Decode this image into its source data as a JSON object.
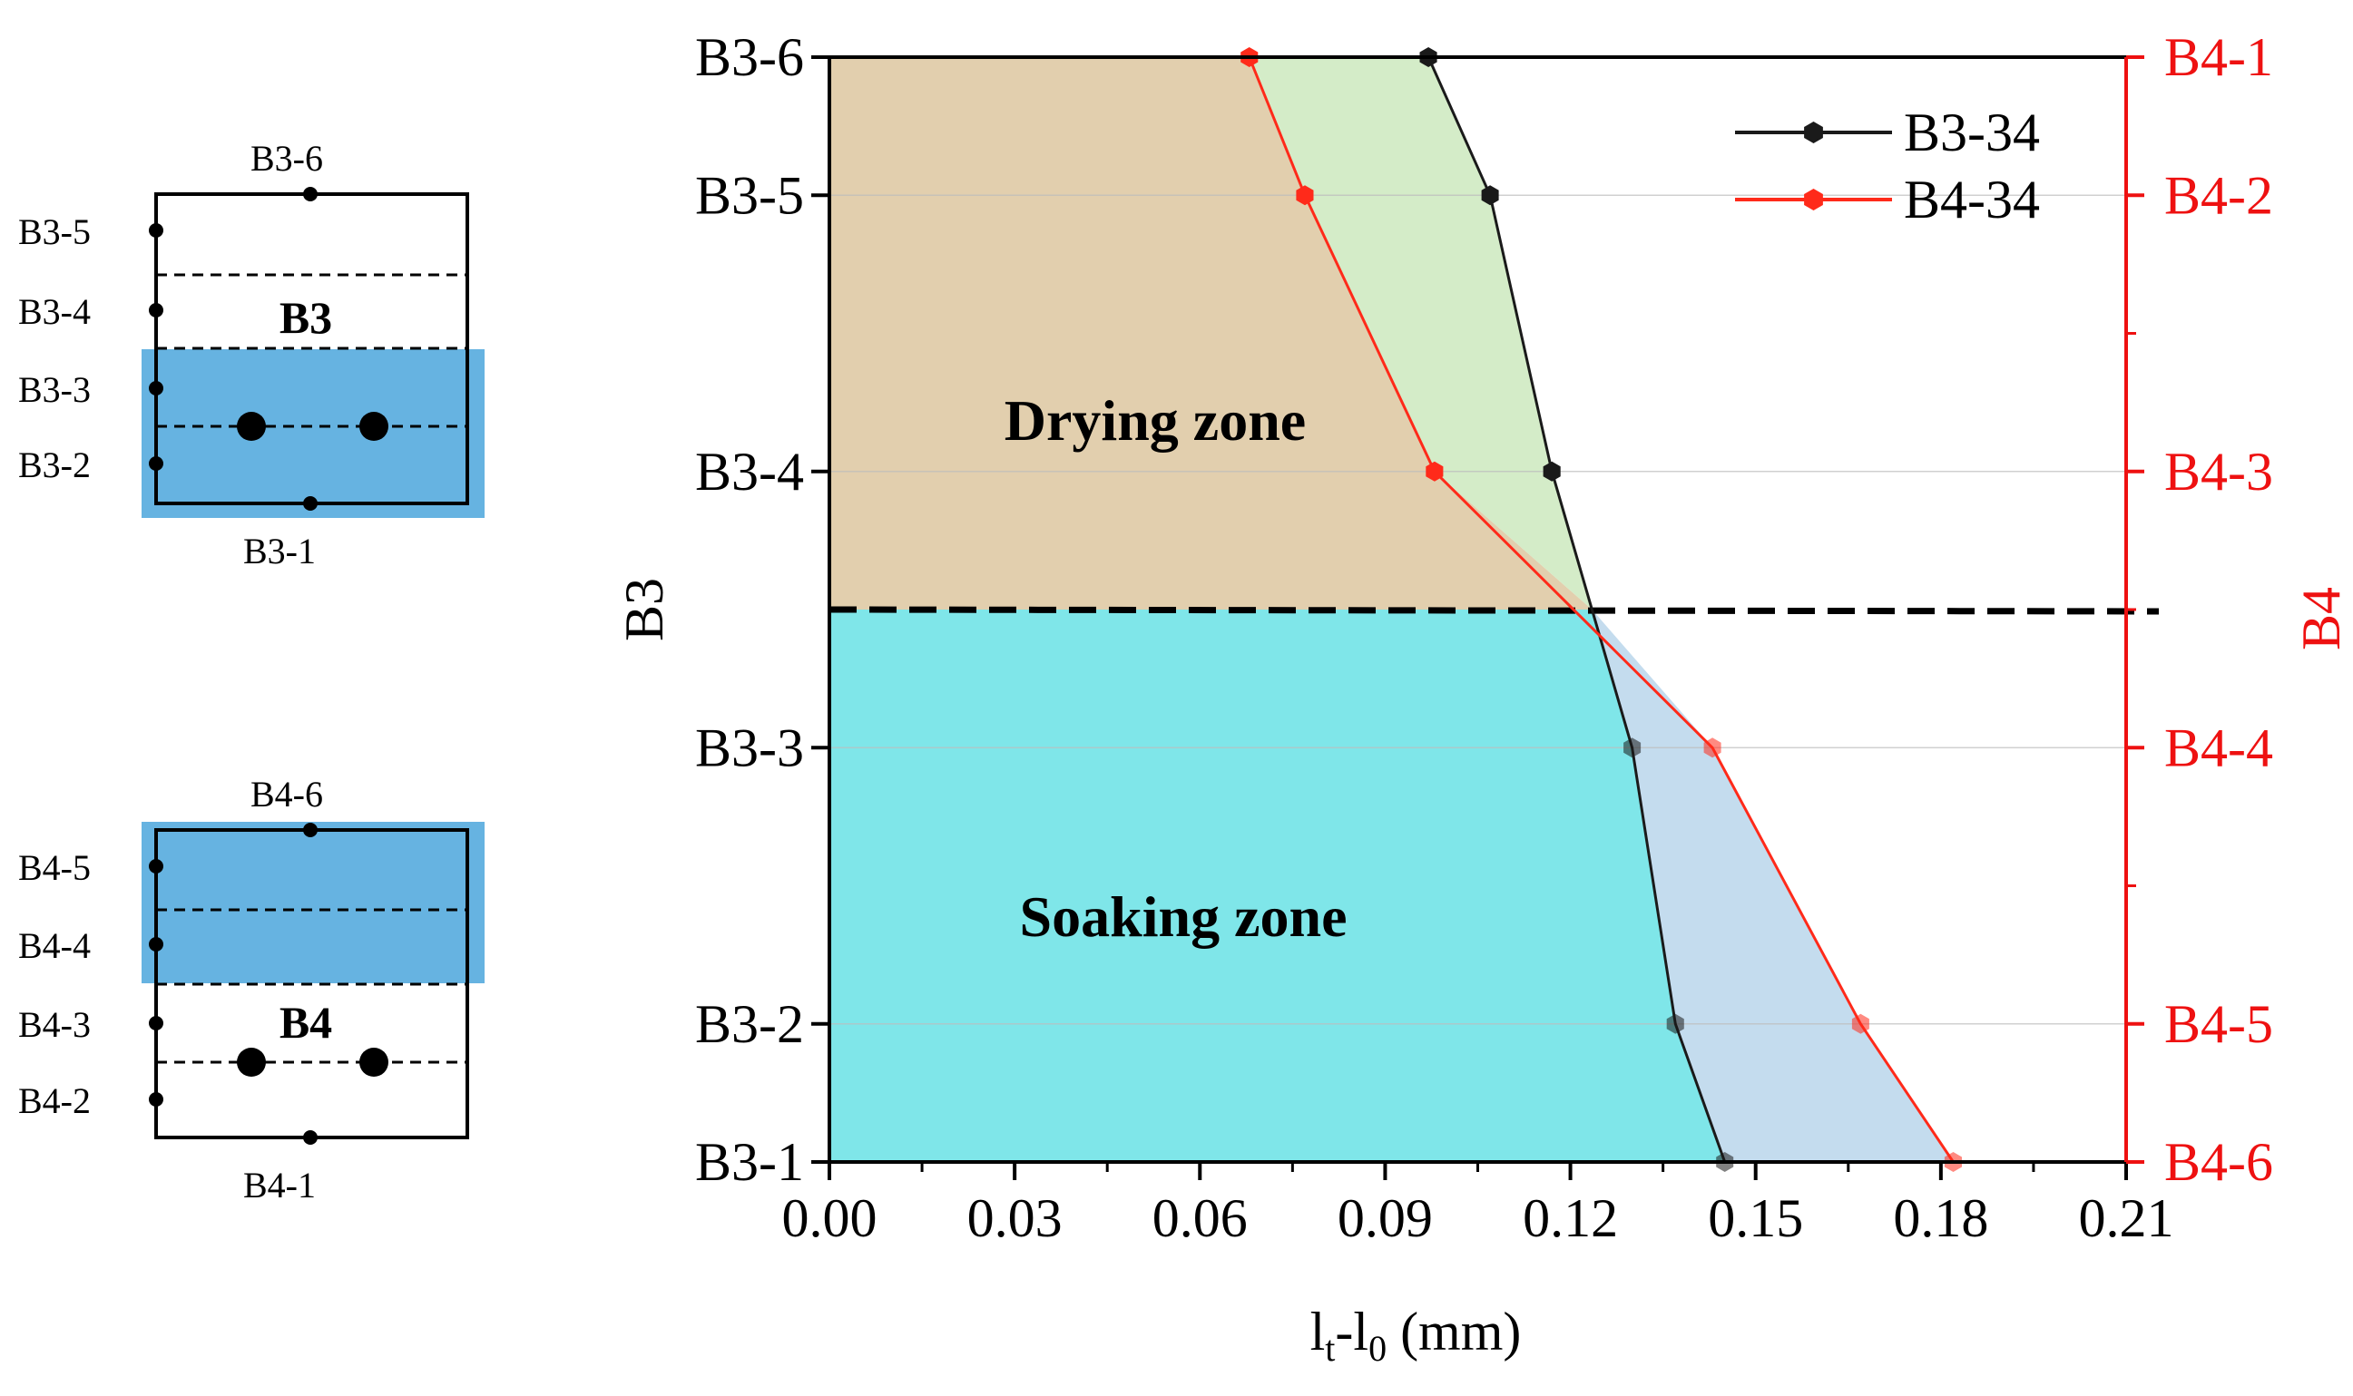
{
  "chart_data": {
    "type": "line",
    "xlabel": "lt-l0 (mm)",
    "xlabel_main": "l",
    "xlabel_sub1": "t",
    "xlabel_mid": "-l",
    "xlabel_sub2": "0",
    "xlabel_unit": " (mm)",
    "xlim": [
      0,
      0.21
    ],
    "xticks": [
      "0.00",
      "0.03",
      "0.06",
      "0.09",
      "0.12",
      "0.15",
      "0.18",
      "0.21"
    ],
    "ylabel_left": "B3",
    "ylabel_right": "B4",
    "y_left_ticks": [
      "B3-1",
      "B3-2",
      "B3-3",
      "B3-4",
      "B3-5",
      "B3-6"
    ],
    "y_right_ticks": [
      "B4-6",
      "B4-5",
      "B4-4",
      "B4-3",
      "B4-2",
      "B4-1"
    ],
    "y_positions": [
      0,
      0.5,
      1.5,
      2.5,
      3.5,
      4.0
    ],
    "series": [
      {
        "name": "B3-34",
        "color": "#1a1a1a",
        "x": [
          0.145,
          0.137,
          0.13,
          0.117,
          0.107,
          0.097
        ],
        "y": [
          0,
          0.5,
          1.5,
          2.5,
          3.5,
          4.0
        ]
      },
      {
        "name": "B4-34",
        "color": "#ff2a1a",
        "x": [
          0.182,
          0.167,
          0.143,
          0.098,
          0.077,
          0.068
        ],
        "y": [
          0,
          0.5,
          1.5,
          2.5,
          3.5,
          4.0
        ]
      }
    ],
    "boundary_level": 2.0,
    "annotations": {
      "drying": "Drying zone",
      "soaking": "Soaking zone"
    },
    "colors": {
      "drying_fill": "#e2cfae",
      "drying_green": "#d4ecc8",
      "soaking_fill": "#7fe6e9",
      "soaking_blue": "#c4dcee",
      "right_axis": "#ee1111"
    }
  },
  "schematic": {
    "b3": {
      "label": "B3",
      "points": [
        "B3-6",
        "B3-5",
        "B3-4",
        "B3-3",
        "B3-2",
        "B3-1"
      ]
    },
    "b4": {
      "label": "B4",
      "points": [
        "B4-6",
        "B4-5",
        "B4-4",
        "B4-3",
        "B4-2",
        "B4-1"
      ]
    },
    "highlight_color": "#4ba6dc"
  }
}
